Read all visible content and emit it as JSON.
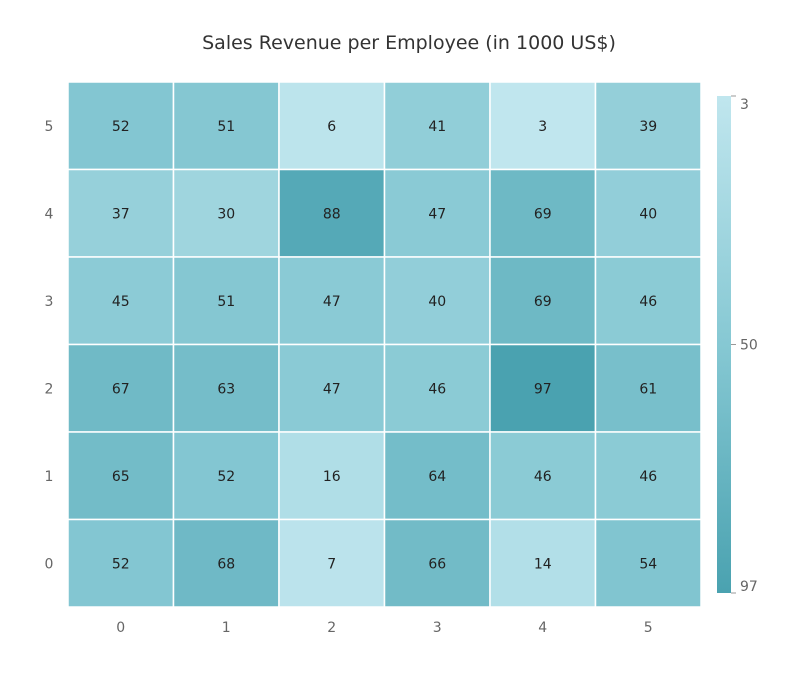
{
  "chart_data": {
    "type": "heatmap",
    "title": "Sales Revenue per Employee (in 1000 US$)",
    "xlabel": "",
    "ylabel": "",
    "x_categories": [
      "0",
      "1",
      "2",
      "3",
      "4",
      "5"
    ],
    "y_categories": [
      "0",
      "1",
      "2",
      "3",
      "4",
      "5"
    ],
    "rows": [
      {
        "y": "5",
        "values": [
          52,
          51,
          6,
          41,
          3,
          39
        ]
      },
      {
        "y": "4",
        "values": [
          37,
          30,
          88,
          47,
          69,
          40
        ]
      },
      {
        "y": "3",
        "values": [
          45,
          51,
          47,
          40,
          69,
          46
        ]
      },
      {
        "y": "2",
        "values": [
          67,
          63,
          47,
          46,
          97,
          61
        ]
      },
      {
        "y": "1",
        "values": [
          65,
          52,
          16,
          64,
          46,
          46
        ]
      },
      {
        "y": "0",
        "values": [
          52,
          68,
          7,
          66,
          14,
          54
        ]
      }
    ],
    "color_scale": {
      "min": 3,
      "mid": 50,
      "max": 97,
      "labels": [
        "3",
        "50",
        "97"
      ],
      "colors": [
        "#c0e6ee",
        "#86c8d3",
        "#4aa2b0"
      ]
    },
    "grid": false,
    "legend_position": "right"
  }
}
